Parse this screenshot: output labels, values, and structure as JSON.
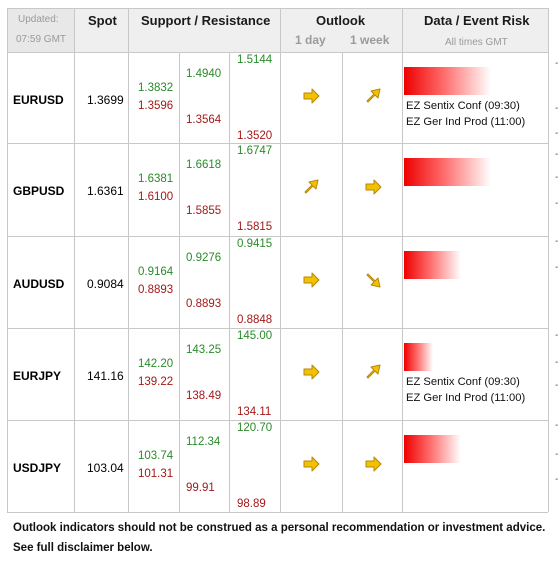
{
  "header": {
    "updated_label": "Updated:",
    "updated_time": "07:59 GMT",
    "spot": "Spot",
    "sr": "Support / Resistance",
    "outlook": "Outlook",
    "outlook_1day": "1 day",
    "outlook_1week": "1 week",
    "event": "Data / Event Risk",
    "event_sub": "All times GMT"
  },
  "colors": {
    "support": "#a41818",
    "resistance": "#2a8a2a",
    "risk_bar": "#ee0000",
    "arrow": "#f2c200"
  },
  "rows": [
    {
      "pair": "EURUSD",
      "spot": "1.3699",
      "r1": "1.3832",
      "s1": "1.3596",
      "r2": "1.4940",
      "s2": "1.3564",
      "r3": "1.5144",
      "s3": "1.3520",
      "outlook_1day": "right-arrow-icon",
      "outlook_1week": "up-right-arrow-icon",
      "risk_level": 0.62,
      "events": [
        "EZ Sentix Conf (09:30)",
        "EZ Ger Ind Prod (11:00)"
      ]
    },
    {
      "pair": "GBPUSD",
      "spot": "1.6361",
      "r1": "1.6381",
      "s1": "1.6100",
      "r2": "1.6618",
      "s2": "1.5855",
      "r3": "1.6747",
      "s3": "1.5815",
      "outlook_1day": "up-right-arrow-icon",
      "outlook_1week": "right-arrow-icon",
      "risk_level": 0.62,
      "events": []
    },
    {
      "pair": "AUDUSD",
      "spot": "0.9084",
      "r1": "0.9164",
      "s1": "0.8893",
      "r2": "0.9276",
      "s2": "0.8893",
      "r3": "0.9415",
      "s3": "0.8848",
      "outlook_1day": "right-arrow-icon",
      "outlook_1week": "down-right-arrow-icon",
      "risk_level": 0.41,
      "events": []
    },
    {
      "pair": "EURJPY",
      "spot": "141.16",
      "r1": "142.20",
      "s1": "139.22",
      "r2": "143.25",
      "s2": "138.49",
      "r3": "145.00",
      "s3": "134.11",
      "outlook_1day": "right-arrow-icon",
      "outlook_1week": "up-right-arrow-icon",
      "risk_level": 0.21,
      "events": [
        "EZ Sentix Conf (09:30)",
        "EZ Ger Ind Prod (11:00)"
      ]
    },
    {
      "pair": "USDJPY",
      "spot": "103.04",
      "r1": "103.74",
      "s1": "101.31",
      "r2": "112.34",
      "s2": "99.91",
      "r3": "120.70",
      "s3": "98.89",
      "outlook_1day": "right-arrow-icon",
      "outlook_1week": "right-arrow-icon",
      "risk_level": 0.41,
      "events": []
    }
  ],
  "footer": {
    "line1": "Outlook indicators should not be construed as a personal recommendation or investment advice.",
    "line2": "See full disclaimer below."
  }
}
